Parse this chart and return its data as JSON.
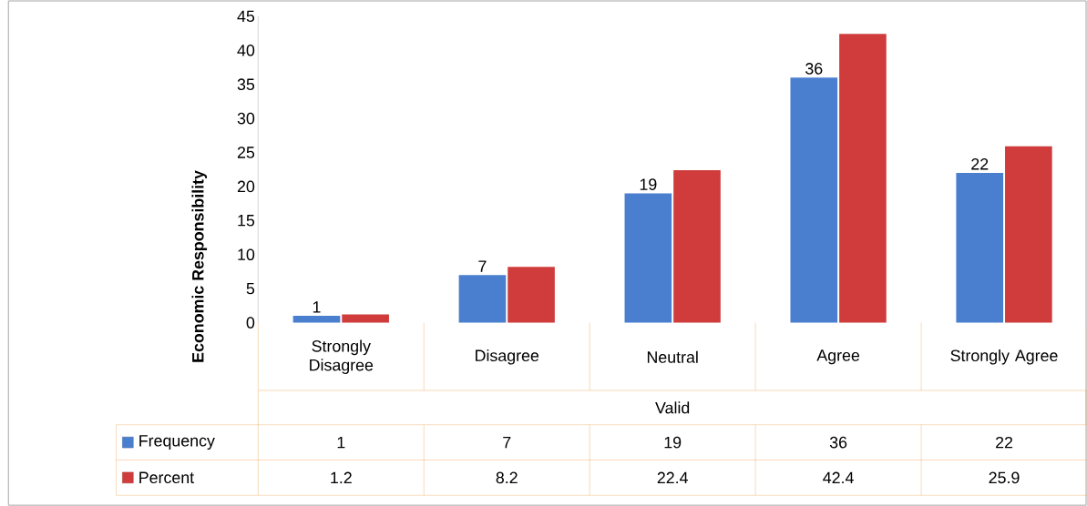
{
  "chart_data": {
    "type": "bar",
    "ylabel": "Economic Responsibility",
    "xlabel": "Valid",
    "categories": [
      "Strongly Disagree",
      "Disagree",
      "Neutral",
      "Agree",
      "Strongly Agree"
    ],
    "series": [
      {
        "name": "Frequency",
        "color": "#4a7fd0",
        "values": [
          1,
          7,
          19,
          36,
          22
        ],
        "value_labels": [
          "1",
          "7",
          "19",
          "36",
          "22"
        ]
      },
      {
        "name": "Percent",
        "color": "#d03b3b",
        "values": [
          1.2,
          8.2,
          22.4,
          42.4,
          25.9
        ]
      }
    ],
    "ylim": [
      0,
      45
    ],
    "yticks": [
      0,
      5,
      10,
      15,
      20,
      25,
      30,
      35,
      40,
      45
    ],
    "data_labels": true,
    "legend": "bottom"
  }
}
